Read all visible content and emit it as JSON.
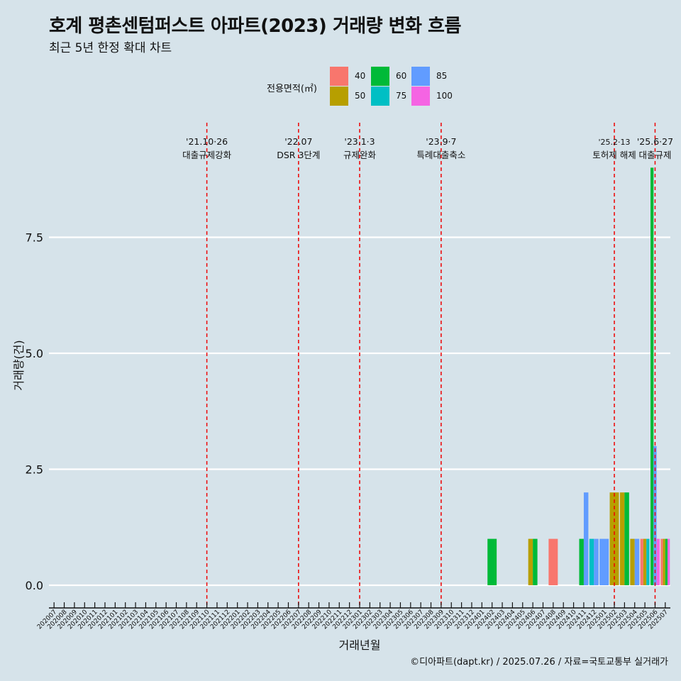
{
  "title": "호계 평촌센텀퍼스트 아파트(2023) 거래량 변화 흐름",
  "subtitle": "최근 5년 한정 확대 차트",
  "caption": "©디아파트(dapt.kr) / 2025.07.26 / 자료=국토교통부 실거래가",
  "legend": {
    "title": "전용면적(㎡)",
    "items": [
      {
        "label": "40",
        "color": "#f8766d"
      },
      {
        "label": "50",
        "color": "#b79f00"
      },
      {
        "label": "60",
        "color": "#00ba38"
      },
      {
        "label": "75",
        "color": "#00bfc4"
      },
      {
        "label": "85",
        "color": "#619cff"
      },
      {
        "label": "100",
        "color": "#f564e3"
      }
    ]
  },
  "chart_data": {
    "type": "bar",
    "xlabel": "거래년월",
    "ylabel": "거래량(건)",
    "ylim": [
      -0.45,
      9.6
    ],
    "yticks": [
      0.0,
      2.5,
      5.0,
      7.5
    ],
    "ytick_labels": [
      "0.0",
      "2.5",
      "5.0",
      "7.5"
    ],
    "grid": true,
    "legend_position": "top",
    "categories": [
      "202007",
      "202008",
      "202009",
      "202010",
      "202011",
      "202012",
      "202101",
      "202102",
      "202103",
      "202104",
      "202105",
      "202106",
      "202107",
      "202108",
      "202109",
      "202110",
      "202111",
      "202112",
      "202201",
      "202202",
      "202203",
      "202204",
      "202205",
      "202206",
      "202207",
      "202208",
      "202209",
      "202210",
      "202211",
      "202212",
      "202301",
      "202302",
      "202303",
      "202304",
      "202305",
      "202306",
      "202307",
      "202308",
      "202309",
      "202310",
      "202311",
      "202312",
      "202401",
      "202402",
      "202403",
      "202404",
      "202405",
      "202406",
      "202407",
      "202408",
      "202409",
      "202410",
      "202411",
      "202412",
      "202501",
      "202502",
      "202503",
      "202504",
      "202505",
      "202506",
      "202507"
    ],
    "series_order": [
      "40",
      "50",
      "60",
      "75",
      "85",
      "100"
    ],
    "bars": [
      {
        "month": "202402",
        "values": {
          "60": 1
        }
      },
      {
        "month": "202406",
        "values": {
          "50": 1,
          "60": 1
        }
      },
      {
        "month": "202408",
        "values": {
          "40": 1
        }
      },
      {
        "month": "202411",
        "values": {
          "60": 1,
          "85": 2
        }
      },
      {
        "month": "202412",
        "values": {
          "75": 1,
          "85": 1
        }
      },
      {
        "month": "202501",
        "values": {
          "85": 1
        }
      },
      {
        "month": "202502",
        "values": {
          "50": 2
        }
      },
      {
        "month": "202503",
        "values": {
          "50": 2,
          "60": 2
        }
      },
      {
        "month": "202504",
        "values": {
          "50": 1,
          "85": 1
        }
      },
      {
        "month": "202505",
        "values": {
          "40": 1,
          "50": 1,
          "75": 1
        }
      },
      {
        "month": "202506",
        "values": {
          "60": 9,
          "85": 3,
          "100": 1
        }
      },
      {
        "month": "202507",
        "values": {
          "40": 1,
          "50": 1,
          "60": 1,
          "100": 1
        }
      }
    ],
    "events": [
      {
        "month": "202110",
        "date": "'21.10·26",
        "label": "대출규제강화"
      },
      {
        "month": "202207",
        "date": "'22.07",
        "label": "DSR 3단계"
      },
      {
        "month": "202301",
        "date": "'23.1·3",
        "label": "규제완화"
      },
      {
        "month": "202309",
        "date": "'23.9·7",
        "label": "특례대출축소"
      },
      {
        "month": "202502",
        "date": "'25.2·13",
        "label": "토허제 해제"
      },
      {
        "month": "202506",
        "date": "'25.6·27",
        "label": "대출규제"
      }
    ]
  }
}
